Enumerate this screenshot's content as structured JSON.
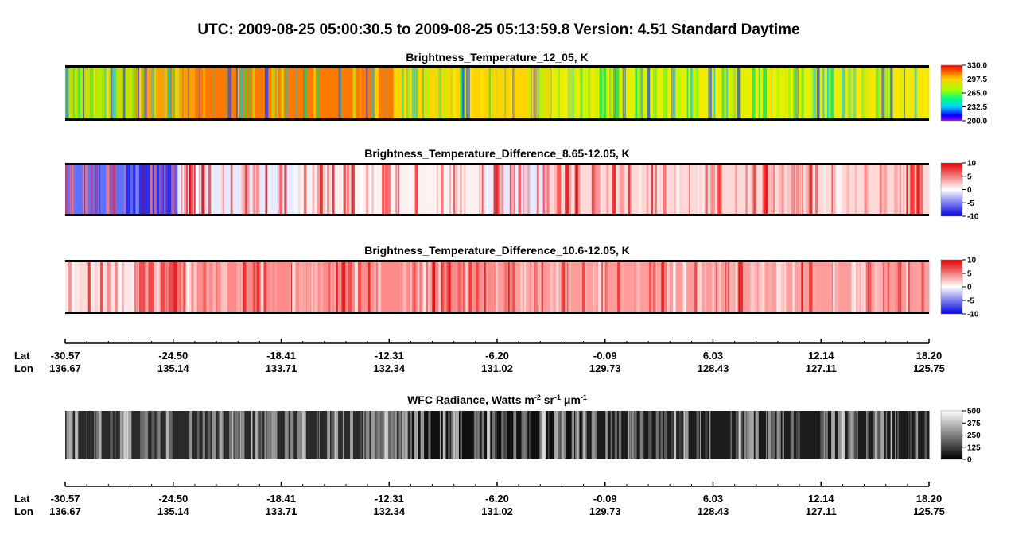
{
  "title": "UTC:  2009-08-25   05:00:30.5  to  2009-08-25   05:13:59.8    Version: 4.51  Standard Daytime",
  "panels": [
    {
      "title": "Brightness_Temperature_12_05, K",
      "scale": "rainbow",
      "colorbar_ticks": [
        {
          "value": 330,
          "label": "330.0"
        },
        {
          "value": 297.5,
          "label": "297.5"
        },
        {
          "value": 265,
          "label": "265.0"
        },
        {
          "value": 232.5,
          "label": "232.5"
        },
        {
          "value": 200,
          "label": "200.0"
        }
      ]
    },
    {
      "title": "Brightness_Temperature_Difference_8.65-12.05, K",
      "scale": "diverging",
      "colorbar_ticks": [
        10,
        5,
        0,
        -5,
        -10
      ]
    },
    {
      "title": "Brightness_Temperature_Difference_10.6-12.05, K",
      "scale": "diverging",
      "colorbar_ticks": [
        10,
        5,
        0,
        -5,
        -10
      ]
    },
    {
      "title_parts": [
        {
          "text": "WFC Radiance, Watts m",
          "sup": "-2"
        },
        {
          "text": " sr",
          "sup": "-1"
        },
        {
          "text": " μm",
          "sup": "-1"
        }
      ],
      "scale": "gray",
      "colorbar_ticks": [
        500,
        375,
        250,
        125,
        0
      ]
    }
  ],
  "axis": {
    "lat_label": "Lat",
    "lon_label": "Lon",
    "lat": [
      "-30.57",
      "-24.50",
      "-18.41",
      "-12.31",
      "-6.20",
      "-0.09",
      "6.03",
      "12.14",
      "18.20"
    ],
    "lon": [
      "136.67",
      "135.14",
      "133.71",
      "132.34",
      "131.02",
      "129.73",
      "128.43",
      "127.11",
      "125.75"
    ]
  }
}
